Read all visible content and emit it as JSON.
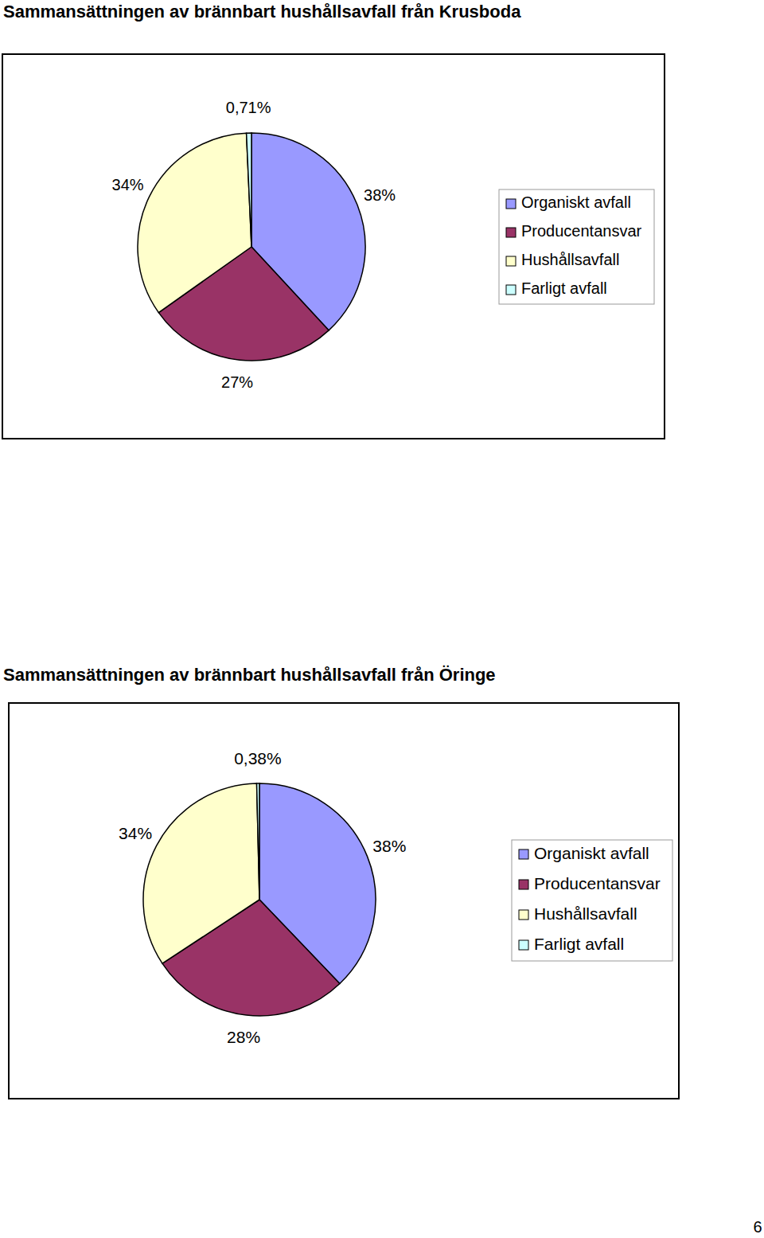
{
  "chart_data": [
    {
      "type": "pie",
      "title": "Sammansättningen av brännbart hushållsavfall från Krusboda",
      "categories": [
        "Organiskt avfall",
        "Producentansvar",
        "Hushållsavfall",
        "Farligt avfall"
      ],
      "values": [
        38,
        27,
        34,
        0.71
      ],
      "value_labels": [
        "38%",
        "27%",
        "34%",
        "0,71%"
      ],
      "colors": [
        "#9999ff",
        "#993366",
        "#ffffcc",
        "#ccffff"
      ],
      "data_labels": true,
      "legend": "right"
    },
    {
      "type": "pie",
      "title": "Sammansättningen av brännbart hushållsavfall från Öringe",
      "categories": [
        "Organiskt avfall",
        "Producentansvar",
        "Hushållsavfall",
        "Farligt avfall"
      ],
      "values": [
        38,
        28,
        34,
        0.38
      ],
      "value_labels": [
        "38%",
        "28%",
        "34%",
        "0,38%"
      ],
      "colors": [
        "#9999ff",
        "#993366",
        "#ffffcc",
        "#ccffff"
      ],
      "data_labels": true,
      "legend": "right"
    }
  ],
  "page_number": "6"
}
